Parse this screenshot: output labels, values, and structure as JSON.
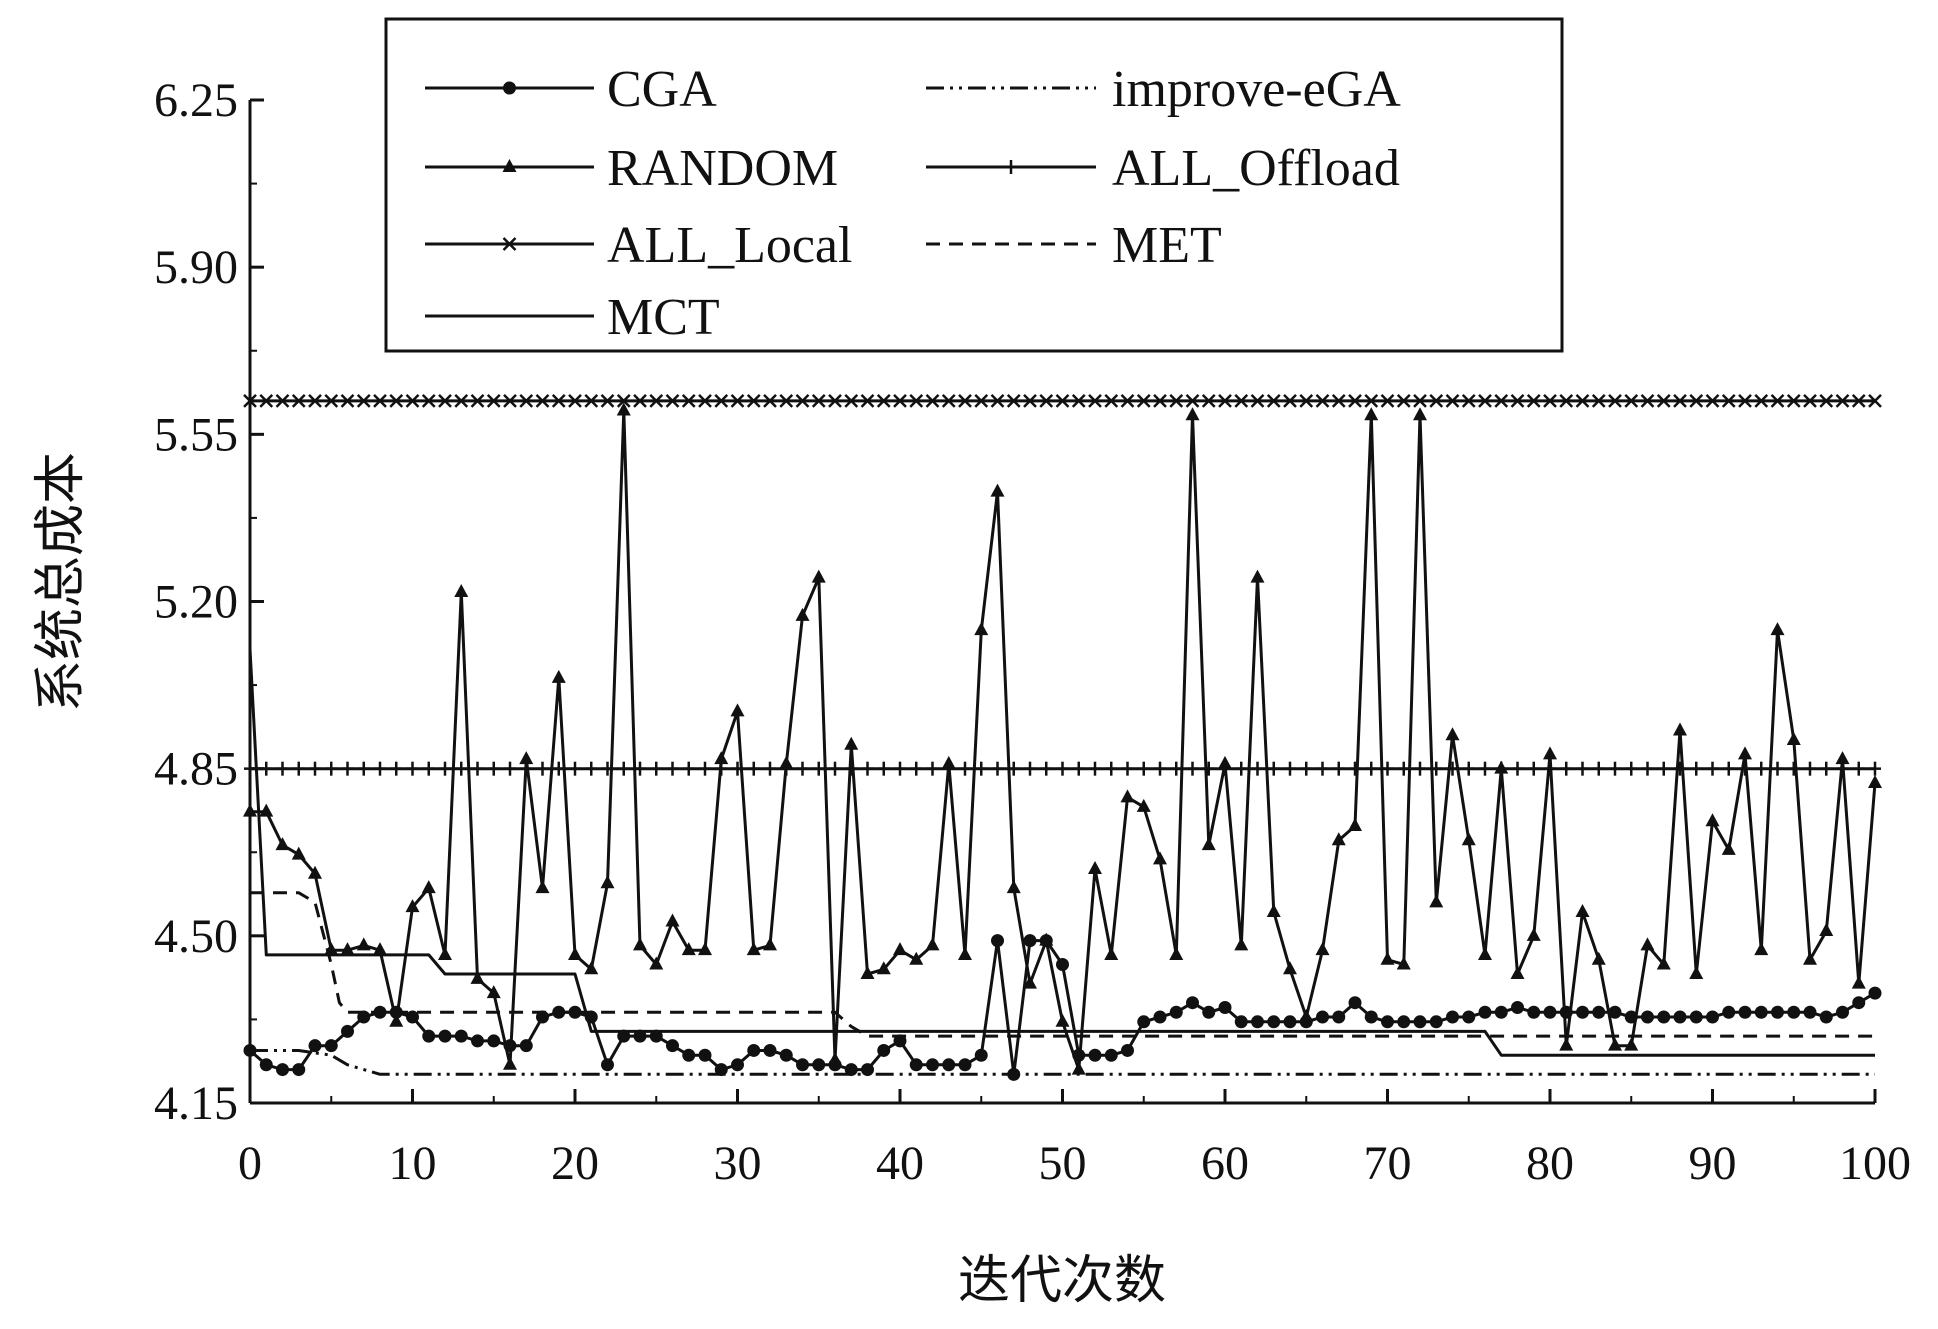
{
  "chart_data": {
    "type": "line",
    "xlabel": "迭代次数",
    "ylabel": "系统总成本",
    "xlim": [
      0,
      100
    ],
    "ylim": [
      4.15,
      6.25
    ],
    "x_ticks": [
      "0",
      "10",
      "20",
      "30",
      "40",
      "50",
      "60",
      "70",
      "80",
      "90",
      "100"
    ],
    "y_ticks": [
      "4.15",
      "4.50",
      "4.85",
      "5.20",
      "5.55",
      "5.90",
      "6.25"
    ],
    "grid": false,
    "legend_position": "top-center",
    "series": [
      {
        "name": "CGA",
        "marker": "circle",
        "dash": "solid",
        "y": [
          4.26,
          4.23,
          4.22,
          4.22,
          4.27,
          4.27,
          4.3,
          4.33,
          4.34,
          4.34,
          4.33,
          4.29,
          4.29,
          4.29,
          4.28,
          4.28,
          4.27,
          4.27,
          4.33,
          4.34,
          4.34,
          4.33,
          4.23,
          4.29,
          4.29,
          4.29,
          4.27,
          4.25,
          4.25,
          4.22,
          4.23,
          4.26,
          4.26,
          4.25,
          4.23,
          4.23,
          4.23,
          4.22,
          4.22,
          4.26,
          4.28,
          4.23,
          4.23,
          4.23,
          4.23,
          4.25,
          4.49,
          4.21,
          4.49,
          4.49,
          4.44,
          4.25,
          4.25,
          4.25,
          4.26,
          4.32,
          4.33,
          4.34,
          4.36,
          4.34,
          4.35,
          4.32,
          4.32,
          4.32,
          4.32,
          4.32,
          4.33,
          4.33,
          4.36,
          4.33,
          4.32,
          4.32,
          4.32,
          4.32,
          4.33,
          4.33,
          4.34,
          4.34,
          4.35,
          4.34,
          4.34,
          4.34,
          4.34,
          4.34,
          4.34,
          4.33,
          4.33,
          4.33,
          4.33,
          4.33,
          4.33,
          4.34,
          4.34,
          4.34,
          4.34,
          4.34,
          4.34,
          4.33,
          4.34,
          4.36,
          4.38
        ]
      },
      {
        "name": "RANDOM",
        "marker": "triangle",
        "dash": "solid",
        "y": [
          4.76,
          4.76,
          4.69,
          4.67,
          4.63,
          4.47,
          4.47,
          4.48,
          4.47,
          4.32,
          4.56,
          4.6,
          4.46,
          5.22,
          4.41,
          4.38,
          4.23,
          4.87,
          4.6,
          5.04,
          4.46,
          4.43,
          4.61,
          5.6,
          4.48,
          4.44,
          4.53,
          4.47,
          4.47,
          4.87,
          4.97,
          4.47,
          4.48,
          4.86,
          5.17,
          5.25,
          4.24,
          4.9,
          4.42,
          4.43,
          4.47,
          4.45,
          4.48,
          4.86,
          4.46,
          5.14,
          5.43,
          4.6,
          4.4,
          4.49,
          4.32,
          4.22,
          4.64,
          4.46,
          4.79,
          4.77,
          4.66,
          4.46,
          5.59,
          4.69,
          4.86,
          4.48,
          5.25,
          4.55,
          4.43,
          4.33,
          4.47,
          4.7,
          4.73,
          5.59,
          4.45,
          4.44,
          5.59,
          4.57,
          4.92,
          4.7,
          4.46,
          4.85,
          4.42,
          4.5,
          4.88,
          4.27,
          4.55,
          4.45,
          4.27,
          4.27,
          4.48,
          4.44,
          4.93,
          4.42,
          4.74,
          4.68,
          4.88,
          4.47,
          5.14,
          4.91,
          4.45,
          4.51,
          4.87,
          4.4,
          4.82
        ]
      },
      {
        "name": "ALL_Local",
        "marker": "x",
        "dash": "solid",
        "constant": 5.62
      },
      {
        "name": "MCT",
        "marker": "none",
        "dash": "solid",
        "steps": [
          [
            0,
            5.1
          ],
          [
            1,
            4.46
          ],
          [
            11,
            4.46
          ],
          [
            12,
            4.42
          ],
          [
            20,
            4.42
          ],
          [
            21,
            4.3
          ],
          [
            76,
            4.3
          ],
          [
            77,
            4.25
          ],
          [
            100,
            4.25
          ]
        ]
      },
      {
        "name": "improve-eGA",
        "marker": "none",
        "dash": "dashdotdot",
        "points": [
          [
            0,
            4.26
          ],
          [
            1,
            4.26
          ],
          [
            3,
            4.26
          ],
          [
            5,
            4.25
          ],
          [
            6,
            4.23
          ],
          [
            7,
            4.22
          ],
          [
            8,
            4.21
          ],
          [
            10,
            4.21
          ],
          [
            20,
            4.21
          ],
          [
            40,
            4.21
          ],
          [
            60,
            4.21
          ],
          [
            80,
            4.21
          ],
          [
            100,
            4.21
          ]
        ]
      },
      {
        "name": "ALL_Offload",
        "marker": "plus",
        "dash": "solid",
        "constant": 4.85
      },
      {
        "name": "MET",
        "marker": "none",
        "dash": "dashed",
        "points": [
          [
            0,
            4.59
          ],
          [
            1,
            4.59
          ],
          [
            2,
            4.59
          ],
          [
            3,
            4.59
          ],
          [
            4,
            4.57
          ],
          [
            5,
            4.44
          ],
          [
            5.5,
            4.36
          ],
          [
            6,
            4.34
          ],
          [
            10,
            4.34
          ],
          [
            20,
            4.34
          ],
          [
            36,
            4.34
          ],
          [
            37,
            4.31
          ],
          [
            38,
            4.29
          ],
          [
            40,
            4.29
          ],
          [
            60,
            4.29
          ],
          [
            80,
            4.29
          ],
          [
            100,
            4.29
          ]
        ]
      }
    ]
  },
  "legend": {
    "items": [
      "CGA",
      "RANDOM",
      "ALL_Local",
      "MCT",
      "improve-eGA",
      "ALL_Offload",
      "MET"
    ]
  }
}
